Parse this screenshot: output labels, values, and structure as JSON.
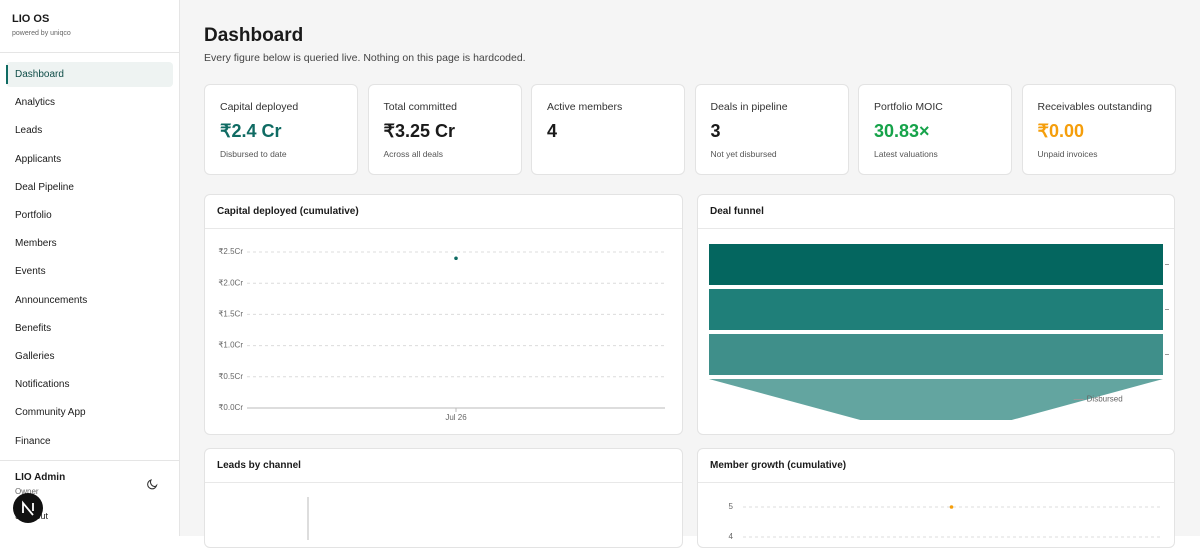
{
  "sidebar": {
    "brand": "LIO OS",
    "tagline": "powered by uniqco",
    "nav": [
      "Dashboard",
      "Analytics",
      "Leads",
      "Applicants",
      "Deal Pipeline",
      "Portfolio",
      "Members",
      "Events",
      "Announcements",
      "Benefits",
      "Galleries",
      "Notifications",
      "Community App",
      "Finance"
    ],
    "active": 0,
    "user": {
      "name": "LIO Admin",
      "role": "Owner",
      "signout": "Sign out"
    }
  },
  "header": {
    "title": "Dashboard",
    "subtitle": "Every figure below is queried live. Nothing on this page is hardcoded."
  },
  "kpis": [
    {
      "label": "Capital deployed",
      "value": "₹2.4 Cr",
      "note": "Disbursed to date",
      "color": "#0f6b63"
    },
    {
      "label": "Total committed",
      "value": "₹3.25 Cr",
      "note": "Across all deals",
      "color": "#1a1a1a"
    },
    {
      "label": "Active members",
      "value": "4",
      "note": null,
      "color": "#1a1a1a"
    },
    {
      "label": "Deals in pipeline",
      "value": "3",
      "note": "Not yet disbursed",
      "color": "#1a1a1a"
    },
    {
      "label": "Portfolio MOIC",
      "value": "30.83×",
      "note": "Latest valuations",
      "color": "#16a34a"
    },
    {
      "label": "Receivables outstanding",
      "value": "₹0.00",
      "note": "Unpaid invoices",
      "color": "#f59e0b"
    }
  ],
  "panels": [
    {
      "type": "line",
      "title": "Capital deployed (cumulative)",
      "categories": [
        "Jul 26"
      ],
      "values": [
        2.4
      ],
      "color": "#0f6b63",
      "ylim": [
        0,
        2.5
      ],
      "yticks": [
        {
          "value": 0,
          "label": "₹0.0Cr"
        },
        {
          "value": 0.5,
          "label": "₹0.5Cr"
        },
        {
          "value": 1,
          "label": "₹1.0Cr"
        },
        {
          "value": 1.5,
          "label": "₹1.5Cr"
        },
        {
          "value": 2,
          "label": "₹2.0Cr"
        },
        {
          "value": 2.5,
          "label": "₹2.5Cr"
        }
      ],
      "grid": true
    },
    {
      "type": "funnel",
      "title": "Deal funnel",
      "categories": [
        null,
        null,
        null,
        "Disbursed"
      ],
      "values": [
        3,
        3,
        3,
        1
      ],
      "colors": [
        "#04665f",
        "#1f7f79",
        "#3f8f8a",
        "#63a5a0"
      ]
    },
    {
      "type": "bar",
      "title": "Leads by channel"
    },
    {
      "type": "line",
      "title": "Member growth (cumulative)",
      "categories": [
        null
      ],
      "values": [
        5
      ],
      "color": "#f59e0b",
      "ylim": [
        0,
        5
      ],
      "yticks": [
        4,
        5
      ],
      "grid": true
    }
  ]
}
